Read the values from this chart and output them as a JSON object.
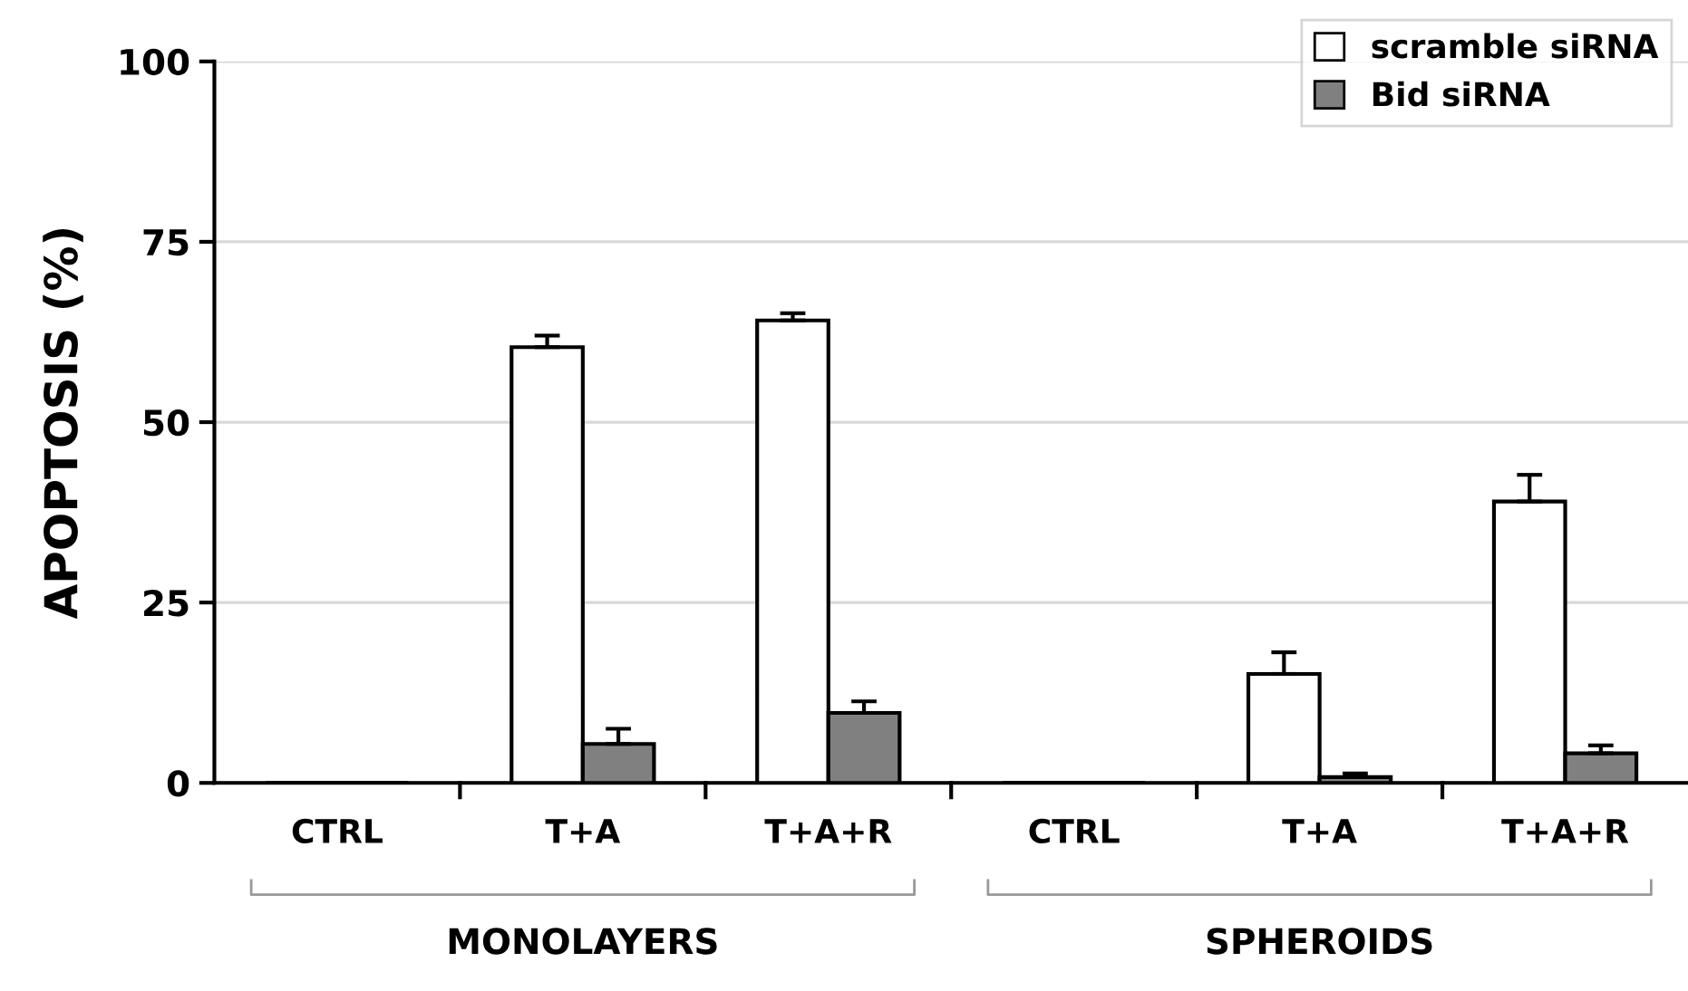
{
  "chart_data": {
    "type": "bar",
    "ylabel": "APOPTOSIS (%)",
    "categories": [
      "CTRL",
      "T+A",
      "T+A+R",
      "CTRL",
      "T+A",
      "T+A+R"
    ],
    "series": [
      {
        "name": "scramble siRNA",
        "color": "#ffffff",
        "values": [
          0,
          60.4,
          64.1,
          0,
          15.1,
          39.0
        ],
        "errors": [
          null,
          1.6,
          1.0,
          null,
          3.0,
          3.7
        ]
      },
      {
        "name": "Bid siRNA",
        "color": "#808080",
        "values": [
          0,
          5.4,
          9.7,
          0,
          0.8,
          4.1
        ],
        "errors": [
          null,
          2.1,
          1.6,
          null,
          0.5,
          1.1
        ]
      }
    ],
    "ylim": [
      0,
      100
    ],
    "yticks": [
      0,
      25,
      50,
      75,
      100
    ],
    "grid": "y",
    "legend": "top right",
    "annotations": [
      "MONOLAYERS",
      "SPHEROIDS"
    ]
  }
}
